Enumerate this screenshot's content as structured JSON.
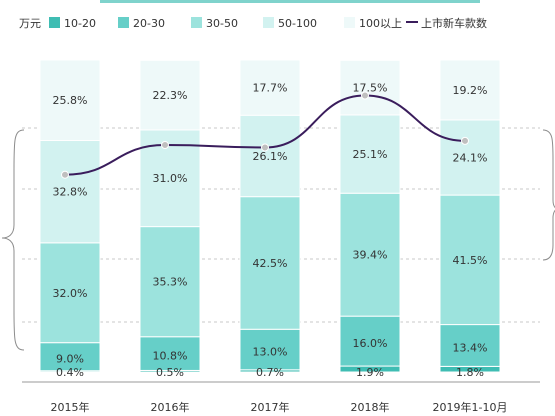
{
  "chart_data": {
    "type": "bar",
    "stacked": true,
    "percent": true,
    "unit_label": "万元",
    "categories": [
      "2015年",
      "2016年",
      "2017年",
      "2018年",
      "2019年1-10月"
    ],
    "series": [
      {
        "name": "10-20",
        "color": "#3fbdb3",
        "values": [
          0.4,
          0.5,
          0.7,
          1.9,
          1.8
        ]
      },
      {
        "name": "20-30",
        "color": "#66cfc8",
        "values": [
          9.0,
          10.8,
          13.0,
          16.0,
          13.4
        ]
      },
      {
        "name": "30-50",
        "color": "#9ce3dd",
        "values": [
          32.0,
          35.3,
          42.5,
          39.4,
          41.5
        ]
      },
      {
        "name": "50-100",
        "color": "#d2f2f0",
        "values": [
          32.8,
          31.0,
          26.1,
          25.1,
          24.1
        ]
      },
      {
        "name": "100以上",
        "color": "#eef9f9",
        "values": [
          25.8,
          22.3,
          17.7,
          17.5,
          19.2
        ]
      }
    ],
    "line_series": {
      "name": "上市新车款数",
      "color": "#3a1d5c",
      "marker_color": "#bfbfbf",
      "relative_level": [
        0.42,
        0.6,
        0.585,
        0.9,
        0.625
      ]
    },
    "legend_position": "top",
    "grid": true,
    "ylim": [
      0,
      100
    ]
  }
}
